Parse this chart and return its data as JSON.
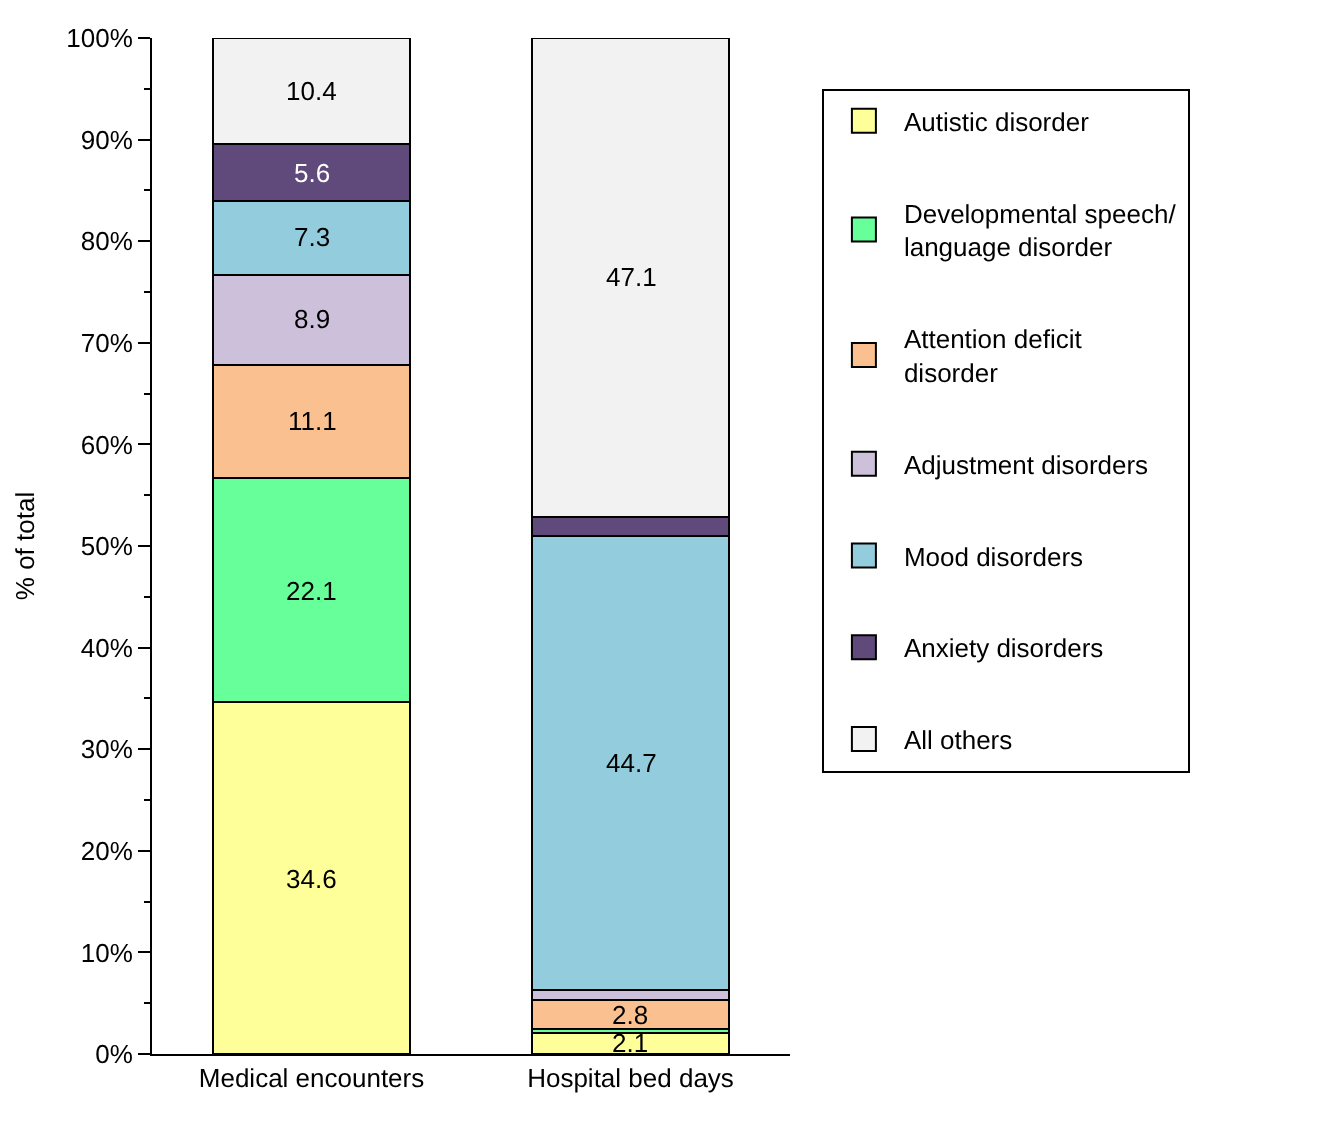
{
  "chart_data": {
    "type": "bar",
    "stacked": true,
    "ylabel": "% of total",
    "categories": [
      "Medical encounters",
      "Hospital bed days"
    ],
    "ylim": [
      0,
      100
    ],
    "yticks": [
      {
        "value": 0,
        "label": "0%"
      },
      {
        "value": 10,
        "label": "10%"
      },
      {
        "value": 20,
        "label": "20%"
      },
      {
        "value": 30,
        "label": "30%"
      },
      {
        "value": 40,
        "label": "40%"
      },
      {
        "value": 50,
        "label": "50%"
      },
      {
        "value": 60,
        "label": "60%"
      },
      {
        "value": 70,
        "label": "70%"
      },
      {
        "value": 80,
        "label": "80%"
      },
      {
        "value": 90,
        "label": "90%"
      },
      {
        "value": 100,
        "label": "100%"
      }
    ],
    "grid": false,
    "legend": "right",
    "series": [
      {
        "name": "Autistic disorder",
        "color": "#ffff99",
        "values": [
          34.6,
          2.1
        ],
        "value_labels": [
          "34.6",
          "2.1"
        ]
      },
      {
        "name": "Developmental speech/ language disorder",
        "color": "#66ff99",
        "values": [
          22.1,
          0.4
        ],
        "value_labels": [
          "22.1",
          null
        ]
      },
      {
        "name": "Attention deficit disorder",
        "color": "#fac090",
        "values": [
          11.1,
          2.8
        ],
        "value_labels": [
          "11.1",
          "2.8"
        ]
      },
      {
        "name": "Adjustment disorders",
        "color": "#ccc0da",
        "values": [
          8.9,
          1.0
        ],
        "value_labels": [
          "8.9",
          null
        ]
      },
      {
        "name": "Mood disorders",
        "color": "#93cddd",
        "values": [
          7.3,
          44.7
        ],
        "value_labels": [
          "7.3",
          "44.7"
        ]
      },
      {
        "name": "Anxiety disorders",
        "color": "#604a7b",
        "values": [
          5.6,
          1.9
        ],
        "value_labels": [
          "5.6",
          null
        ]
      },
      {
        "name": "All others",
        "color": "#f2f2f2",
        "values": [
          10.4,
          47.1
        ],
        "value_labels": [
          "10.4",
          "47.1"
        ]
      }
    ]
  }
}
